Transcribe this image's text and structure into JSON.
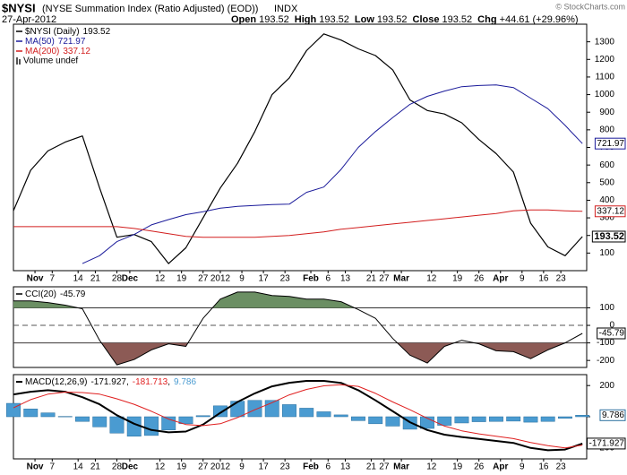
{
  "header": {
    "symbol": "$NYSI",
    "description": "(NYSE Summation Index (Ratio Adjusted) (EOD))",
    "exchange": "INDX",
    "date": "27-Apr-2012",
    "stats": [
      {
        "label": "Open",
        "value": 193.52
      },
      {
        "label": "High",
        "value": 193.52
      },
      {
        "label": "Low",
        "value": 193.52
      },
      {
        "label": "Close",
        "value": 193.52
      }
    ],
    "change_label": "Chg",
    "change": "+44.61",
    "change_pct": "(+29.96%)",
    "copyright": "© StockCharts.com"
  },
  "chart_data": [
    {
      "type": "line",
      "xlim": [
        0,
        133
      ],
      "ylim": [
        0,
        1400
      ],
      "yticks": [
        100,
        200,
        300,
        400,
        500,
        600,
        700,
        800,
        900,
        1000,
        1100,
        1200,
        1300
      ],
      "xticks": [
        {
          "value": 5,
          "label": "Nov"
        },
        {
          "value": 9,
          "label": "7"
        },
        {
          "value": 15,
          "label": "14"
        },
        {
          "value": 19,
          "label": "21"
        },
        {
          "value": 24,
          "label": "28"
        },
        {
          "value": 27,
          "label": "Dec"
        },
        {
          "value": 34,
          "label": "12"
        },
        {
          "value": 39,
          "label": "19"
        },
        {
          "value": 44,
          "label": "27"
        },
        {
          "value": 48,
          "label": "2012"
        },
        {
          "value": 53,
          "label": "9"
        },
        {
          "value": 58,
          "label": "17"
        },
        {
          "value": 63,
          "label": "23"
        },
        {
          "value": 69,
          "label": "Feb"
        },
        {
          "value": 73,
          "label": "6"
        },
        {
          "value": 77,
          "label": "13"
        },
        {
          "value": 83,
          "label": "21"
        },
        {
          "value": 86,
          "label": "27"
        },
        {
          "value": 90,
          "label": "Mar"
        },
        {
          "value": 97,
          "label": "12"
        },
        {
          "value": 103,
          "label": "19"
        },
        {
          "value": 108,
          "label": "26"
        },
        {
          "value": 113,
          "label": "Apr"
        },
        {
          "value": 118,
          "label": "9"
        },
        {
          "value": 123,
          "label": "16"
        },
        {
          "value": 127,
          "label": "23"
        }
      ],
      "xtick_labels": true,
      "x": [
        0,
        4,
        8,
        12,
        16,
        20,
        24,
        28,
        32,
        36,
        40,
        44,
        48,
        52,
        56,
        60,
        64,
        68,
        72,
        76,
        80,
        84,
        88,
        92,
        96,
        100,
        104,
        108,
        112,
        116,
        120,
        124,
        128,
        132
      ],
      "series": [
        {
          "name": "$NYSI (Daily)",
          "color": "#000000",
          "width": 1.2,
          "tag": true,
          "bold_tag": true,
          "values": [
            340,
            570,
            680,
            730,
            765,
            470,
            190,
            205,
            165,
            40,
            130,
            300,
            470,
            610,
            790,
            1000,
            1095,
            1250,
            1345,
            1310,
            1260,
            1222,
            1140,
            970,
            910,
            890,
            840,
            745,
            665,
            560,
            270,
            135,
            85,
            193.52
          ]
        },
        {
          "name": "MA(50)",
          "color": "#1a1a9a",
          "width": 1,
          "tag": true,
          "values": [
            null,
            null,
            null,
            null,
            40,
            85,
            165,
            205,
            260,
            290,
            318,
            335,
            355,
            365,
            370,
            375,
            378,
            445,
            475,
            575,
            700,
            790,
            870,
            945,
            990,
            1020,
            1045,
            1052,
            1055,
            1040,
            980,
            920,
            825,
            721.97
          ]
        },
        {
          "name": "MA(200)",
          "color": "#d21e1e",
          "width": 1,
          "tag": true,
          "values": [
            250,
            250,
            250,
            250,
            250,
            250,
            250,
            240,
            225,
            210,
            195,
            190,
            190,
            190,
            190,
            195,
            200,
            210,
            220,
            235,
            245,
            255,
            265,
            275,
            285,
            295,
            305,
            315,
            325,
            340,
            345,
            345,
            340,
            337.12
          ]
        }
      ],
      "volume_legend": "Volume undef"
    },
    {
      "type": "line",
      "xlim": [
        0,
        133
      ],
      "ylim": [
        -240,
        220
      ],
      "yticks": [
        -200,
        -100,
        0,
        100
      ],
      "hlines": [
        -100,
        100
      ],
      "dashed_hline": 0,
      "fill_above_color": "#6b8f63",
      "fill_below_color": "#8c5a55",
      "x": [
        0,
        4,
        8,
        12,
        16,
        20,
        24,
        28,
        32,
        36,
        40,
        44,
        48,
        52,
        56,
        60,
        64,
        68,
        72,
        76,
        80,
        84,
        88,
        92,
        96,
        100,
        104,
        108,
        112,
        116,
        120,
        124,
        128,
        132
      ],
      "series": [
        {
          "name": "CCI(20)",
          "color": "#000000",
          "width": 1,
          "tag": true,
          "values": [
            140,
            140,
            130,
            115,
            95,
            -85,
            -225,
            -195,
            -140,
            -105,
            -120,
            40,
            150,
            190,
            190,
            170,
            165,
            150,
            150,
            135,
            90,
            40,
            -75,
            -170,
            -215,
            -120,
            -85,
            -105,
            -145,
            -150,
            -190,
            -140,
            -100,
            -45.79
          ]
        }
      ]
    },
    {
      "type": "line",
      "xlim": [
        0,
        133
      ],
      "ylim": [
        -270,
        270
      ],
      "yticks": [
        -200,
        0,
        200
      ],
      "xticks": [
        {
          "value": 5,
          "label": "Nov"
        },
        {
          "value": 9,
          "label": "7"
        },
        {
          "value": 15,
          "label": "14"
        },
        {
          "value": 19,
          "label": "21"
        },
        {
          "value": 24,
          "label": "28"
        },
        {
          "value": 27,
          "label": "Dec"
        },
        {
          "value": 34,
          "label": "12"
        },
        {
          "value": 39,
          "label": "19"
        },
        {
          "value": 44,
          "label": "27"
        },
        {
          "value": 48,
          "label": "2012"
        },
        {
          "value": 53,
          "label": "9"
        },
        {
          "value": 58,
          "label": "17"
        },
        {
          "value": 63,
          "label": "23"
        },
        {
          "value": 69,
          "label": "Feb"
        },
        {
          "value": 73,
          "label": "6"
        },
        {
          "value": 77,
          "label": "13"
        },
        {
          "value": 83,
          "label": "21"
        },
        {
          "value": 86,
          "label": "27"
        },
        {
          "value": 90,
          "label": "Mar"
        },
        {
          "value": 97,
          "label": "12"
        },
        {
          "value": 103,
          "label": "19"
        },
        {
          "value": 108,
          "label": "26"
        },
        {
          "value": 113,
          "label": "Apr"
        },
        {
          "value": 118,
          "label": "9"
        },
        {
          "value": 123,
          "label": "16"
        },
        {
          "value": 127,
          "label": "23"
        }
      ],
      "xtick_labels": true,
      "legend_title": "MACD(12,26,9)",
      "legend_separator": ",",
      "x": [
        0,
        4,
        8,
        12,
        16,
        20,
        24,
        28,
        32,
        36,
        40,
        44,
        48,
        52,
        56,
        60,
        64,
        68,
        72,
        76,
        80,
        84,
        88,
        92,
        96,
        100,
        104,
        108,
        112,
        116,
        120,
        124,
        128,
        132
      ],
      "series": [
        {
          "type": "bar",
          "color": "#4a9bd1",
          "tag": true,
          "values": [
            86,
            50,
            25,
            2,
            -30,
            -65,
            -105,
            -125,
            -120,
            -85,
            -45,
            7,
            70,
            100,
            105,
            105,
            78,
            55,
            32,
            12,
            -25,
            -45,
            -60,
            -80,
            -75,
            -55,
            -40,
            -32,
            -30,
            -28,
            -35,
            -30,
            -10,
            9.786
          ]
        },
        {
          "color": "#000000",
          "width": 2,
          "tag": true,
          "values": [
            143,
            160,
            170,
            160,
            125,
            80,
            10,
            -45,
            -85,
            -100,
            -95,
            -50,
            25,
            95,
            150,
            195,
            218,
            230,
            230,
            217,
            170,
            105,
            35,
            -35,
            -85,
            -115,
            -130,
            -142,
            -155,
            -168,
            -200,
            -215,
            -210,
            -171.927
          ]
        },
        {
          "color": "#e02020",
          "width": 1,
          "values": [
            57,
            110,
            145,
            158,
            155,
            145,
            115,
            80,
            35,
            -15,
            -50,
            -57,
            -45,
            -5,
            45,
            90,
            140,
            175,
            198,
            205,
            195,
            150,
            95,
            45,
            -10,
            -60,
            -90,
            -110,
            -125,
            -140,
            -165,
            -185,
            -200,
            -181.713
          ]
        }
      ],
      "legend_order": [
        1,
        2,
        0
      ]
    }
  ]
}
